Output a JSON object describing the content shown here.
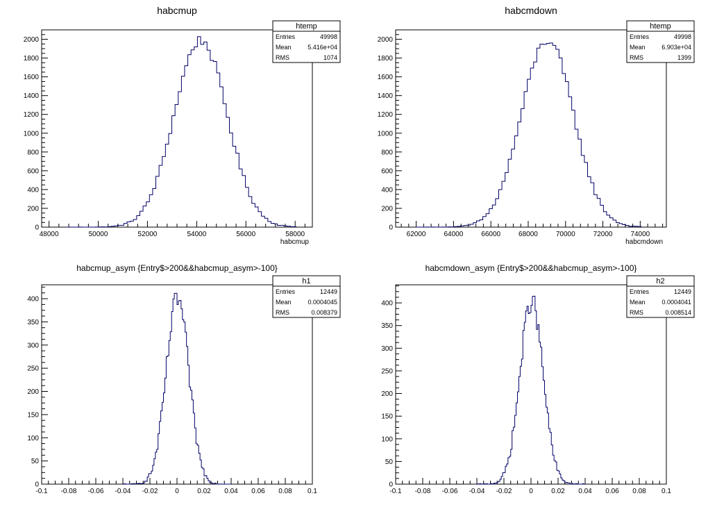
{
  "chart_data": [
    {
      "type": "bar",
      "title": "habcmup",
      "xlabel": "habcmup",
      "ylabel": "",
      "xlim": [
        47700,
        58700
      ],
      "ylim": [
        0,
        2100
      ],
      "x_ticks": [
        48000,
        50000,
        52000,
        54000,
        56000,
        58000
      ],
      "y_ticks": [
        0,
        200,
        400,
        600,
        800,
        1000,
        1200,
        1400,
        1600,
        1800,
        2000
      ],
      "stats": {
        "name": "htemp",
        "rows": [
          [
            "Entries",
            "49998"
          ],
          [
            "Mean",
            "5.416e+04"
          ],
          [
            "RMS",
            "1074"
          ]
        ]
      },
      "line_color": "#000066",
      "dist": {
        "mean": 54160,
        "rms": 1074,
        "peak": 1990,
        "bin_width": 130,
        "xmin": 48700,
        "xmax": 58000
      },
      "grid": false
    },
    {
      "type": "bar",
      "title": "habcmdown",
      "xlabel": "habcmdown",
      "ylabel": "",
      "xlim": [
        60900,
        75400
      ],
      "ylim": [
        0,
        2100
      ],
      "x_ticks": [
        62000,
        64000,
        66000,
        68000,
        70000,
        72000,
        74000
      ],
      "y_ticks": [
        0,
        200,
        400,
        600,
        800,
        1000,
        1200,
        1400,
        1600,
        1800,
        2000
      ],
      "stats": {
        "name": "htemp",
        "rows": [
          [
            "Entries",
            "49998"
          ],
          [
            "Mean",
            "6.903e+04"
          ],
          [
            "RMS",
            "1399"
          ]
        ]
      },
      "line_color": "#000066",
      "dist": {
        "mean": 69030,
        "rms": 1399,
        "peak": 1990,
        "bin_width": 170,
        "xmin": 62000,
        "xmax": 74000
      },
      "grid": false
    },
    {
      "type": "bar",
      "title": "habcmup_asym {Entry$>200&&habcmup_asym>-100}",
      "xlabel": "",
      "ylabel": "",
      "xlim": [
        -0.1,
        0.1
      ],
      "ylim": [
        0,
        430
      ],
      "x_ticks": [
        -0.1,
        -0.08,
        -0.06,
        -0.04,
        -0.02,
        0,
        0.02,
        0.04,
        0.06,
        0.08,
        0.1
      ],
      "y_ticks": [
        0,
        50,
        100,
        150,
        200,
        250,
        300,
        350,
        400
      ],
      "stats": {
        "name": "h1",
        "rows": [
          [
            "Entries",
            "12449"
          ],
          [
            "Mean",
            "0.0004045"
          ],
          [
            "RMS",
            "0.008379"
          ]
        ]
      },
      "line_color": "#000066",
      "dist": {
        "mean": 0.0004045,
        "rms": 0.008379,
        "peak": 400,
        "bin_width": 0.001,
        "xmin": -0.04,
        "xmax": 0.04
      },
      "grid": false
    },
    {
      "type": "bar",
      "title": "habcmdown_asym {Entry$>200&&habcmup_asym>-100}",
      "xlabel": "",
      "ylabel": "",
      "xlim": [
        -0.1,
        0.1
      ],
      "ylim": [
        0,
        440
      ],
      "x_ticks": [
        -0.1,
        -0.08,
        -0.06,
        -0.04,
        -0.02,
        0,
        0.02,
        0.04,
        0.06,
        0.08,
        0.1
      ],
      "y_ticks": [
        0,
        50,
        100,
        150,
        200,
        250,
        300,
        350,
        400
      ],
      "stats": {
        "name": "h2",
        "rows": [
          [
            "Entries",
            "12449"
          ],
          [
            "Mean",
            "0.0004041"
          ],
          [
            "RMS",
            "0.008514"
          ]
        ]
      },
      "line_color": "#000066",
      "dist": {
        "mean": 0.0004041,
        "rms": 0.008514,
        "peak": 405,
        "bin_width": 0.001,
        "xmin": -0.04,
        "xmax": 0.04
      },
      "grid": false
    }
  ]
}
